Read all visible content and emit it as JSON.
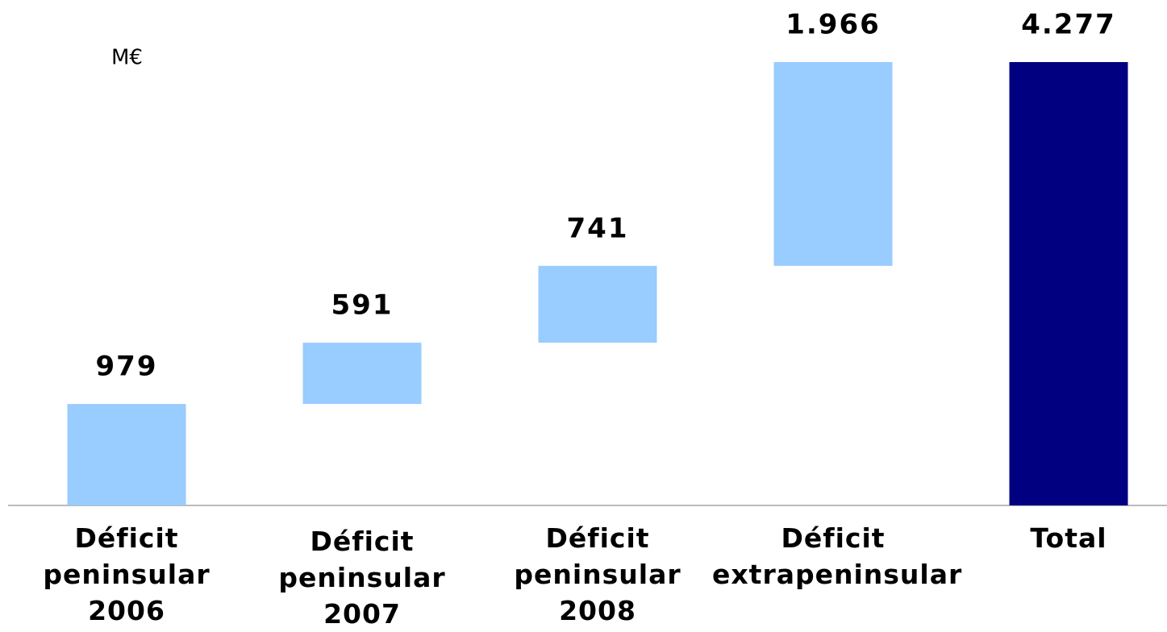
{
  "chart_data": {
    "type": "waterfall",
    "unit_label": "M€",
    "categories": [
      "Déficit peninsular 2006",
      "Déficit peninsular 2007",
      "Déficit peninsular 2008",
      "Déficit extrapeninsular",
      "Total"
    ],
    "values": [
      979,
      591,
      741,
      1966,
      4277
    ],
    "value_labels": [
      "979",
      "591",
      "741",
      "1.966",
      "4.277"
    ],
    "colors": [
      "#99ccff",
      "#99ccff",
      "#99ccff",
      "#99ccff",
      "#000080"
    ]
  }
}
